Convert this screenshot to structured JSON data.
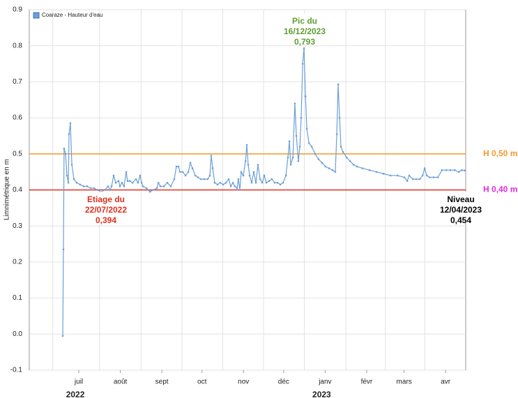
{
  "chart_data": {
    "type": "line",
    "legend": "top-left",
    "grid": true,
    "y_label": "Limnimétrique en m",
    "year_labels": [
      {
        "label": "2022",
        "at": 61
      },
      {
        "label": "2023",
        "at": 245
      }
    ],
    "xlim": [
      24,
      350
    ],
    "xticks": [
      {
        "value": 61,
        "label": "juil"
      },
      {
        "value": 92,
        "label": "août"
      },
      {
        "value": 123,
        "label": "sept"
      },
      {
        "value": 153,
        "label": "oct"
      },
      {
        "value": 184,
        "label": "nov"
      },
      {
        "value": 214,
        "label": "déc"
      },
      {
        "value": 245,
        "label": "janv"
      },
      {
        "value": 276,
        "label": "févr"
      },
      {
        "value": 304,
        "label": "mars"
      },
      {
        "value": 335,
        "label": "avr"
      }
    ],
    "ylim": [
      -0.1,
      0.9
    ],
    "yticks": [
      -0.1,
      {
        "value": 0,
        "label": "0.0"
      },
      0.1,
      0.2,
      0.3,
      0.4,
      0.5,
      0.6,
      0.7,
      0.8,
      0.9
    ],
    "reference_lines": [
      {
        "label": "H 0,50 m",
        "value": 0.5,
        "color": "#f29a2e",
        "label_color": "#f29a2e"
      },
      {
        "label": "H 0,40 m",
        "value": 0.4,
        "color": "#e0301e",
        "label_color": "#e02ee0"
      }
    ],
    "annotations": [
      {
        "lines": [
          "Pic du",
          "16/12/2023",
          "0,793"
        ],
        "color": "#5e9e2e"
      },
      {
        "lines": [
          "Etiage du",
          "22/07/2022",
          "0,394"
        ],
        "color": "#e0301e"
      },
      {
        "lines": [
          "Niveau",
          "12/04/2023",
          "0,454"
        ],
        "color": "#000000"
      }
    ],
    "series": [
      {
        "name": "Coaraze - Hauteur d'eau",
        "color": "#6a9fd8",
        "x": [
          49.0,
          49.5,
          50.0,
          51.1,
          52.1,
          53.2,
          53.7,
          54.7,
          55.8,
          57.3,
          59.4,
          62.0,
          64.6,
          67.2,
          69.8,
          72.4,
          75.0,
          77.6,
          80.2,
          82.9,
          84.4,
          85.5,
          87.0,
          88.6,
          90.7,
          91.7,
          93.3,
          94.8,
          96.4,
          97.4,
          99.0,
          101.1,
          103.7,
          105.2,
          106.8,
          107.9,
          108.9,
          111.5,
          114.1,
          116.7,
          119.3,
          120.4,
          121.9,
          124.5,
          127.1,
          129.7,
          132.3,
          133.9,
          135.5,
          136.5,
          138.6,
          140.7,
          142.8,
          144.3,
          145.9,
          148.0,
          150.0,
          152.1,
          154.7,
          157.3,
          158.9,
          159.9,
          161.0,
          162.5,
          164.6,
          166.7,
          168.8,
          170.9,
          172.9,
          174.5,
          176.1,
          177.6,
          179.2,
          180.2,
          181.3,
          182.3,
          183.9,
          185.5,
          186.5,
          187.5,
          188.6,
          190.1,
          191.7,
          193.3,
          194.8,
          196.4,
          198.0,
          199.5,
          201.1,
          203.2,
          205.2,
          207.3,
          209.4,
          211.5,
          213.6,
          215.7,
          217.2,
          218.3,
          219.3,
          220.9,
          222.4,
          223.5,
          225.0,
          226.1,
          227.1,
          228.2,
          229.2,
          230.3,
          231.3,
          232.9,
          235.0,
          237.5,
          240.1,
          242.7,
          245.3,
          247.9,
          250.6,
          252.6,
          253.7,
          254.7,
          255.8,
          256.8,
          258.4,
          261.0,
          263.6,
          266.2,
          268.8,
          272.9,
          278.2,
          283.4,
          288.6,
          293.8,
          299.0,
          304.2,
          306.3,
          307.8,
          310.5,
          313.1,
          315.7,
          317.8,
          319.3,
          320.9,
          323.0,
          326.1,
          329.2,
          332.3,
          335.5,
          338.6,
          341.8,
          344.9,
          347.0,
          349.1
        ],
        "values": [
          -0.005,
          0.235,
          0.515,
          0.5,
          0.44,
          0.42,
          0.555,
          0.585,
          0.47,
          0.43,
          0.42,
          0.415,
          0.41,
          0.41,
          0.405,
          0.405,
          0.4,
          0.394,
          0.4,
          0.41,
          0.4,
          0.41,
          0.44,
          0.42,
          0.425,
          0.41,
          0.42,
          0.41,
          0.45,
          0.425,
          0.425,
          0.42,
          0.43,
          0.42,
          0.44,
          0.42,
          0.41,
          0.405,
          0.395,
          0.4,
          0.405,
          0.42,
          0.41,
          0.41,
          0.42,
          0.41,
          0.43,
          0.465,
          0.465,
          0.45,
          0.45,
          0.44,
          0.45,
          0.475,
          0.46,
          0.44,
          0.435,
          0.43,
          0.43,
          0.43,
          0.44,
          0.495,
          0.46,
          0.42,
          0.415,
          0.42,
          0.415,
          0.42,
          0.43,
          0.41,
          0.42,
          0.41,
          0.405,
          0.43,
          0.4,
          0.45,
          0.44,
          0.48,
          0.525,
          0.47,
          0.44,
          0.42,
          0.45,
          0.42,
          0.47,
          0.43,
          0.42,
          0.44,
          0.42,
          0.425,
          0.43,
          0.42,
          0.42,
          0.415,
          0.42,
          0.44,
          0.49,
          0.535,
          0.47,
          0.49,
          0.64,
          0.55,
          0.48,
          0.52,
          0.6,
          0.75,
          0.793,
          0.66,
          0.57,
          0.53,
          0.52,
          0.5,
          0.485,
          0.475,
          0.465,
          0.46,
          0.455,
          0.45,
          0.555,
          0.693,
          0.6,
          0.52,
          0.505,
          0.49,
          0.48,
          0.47,
          0.465,
          0.46,
          0.455,
          0.45,
          0.445,
          0.44,
          0.44,
          0.435,
          0.425,
          0.44,
          0.43,
          0.43,
          0.43,
          0.44,
          0.46,
          0.44,
          0.435,
          0.435,
          0.435,
          0.455,
          0.455,
          0.455,
          0.455,
          0.45,
          0.455,
          0.454
        ]
      }
    ]
  }
}
